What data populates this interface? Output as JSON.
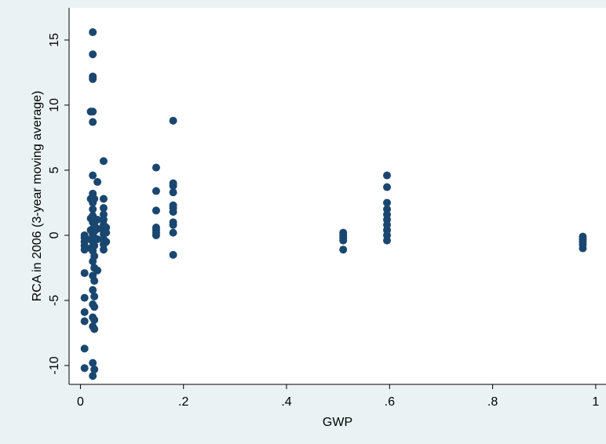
{
  "chart_data": {
    "type": "scatter",
    "x_label": "GWP",
    "y_label": "RCA in 2006 (3-year moving average)",
    "color": "#1a476f",
    "xlim": [
      -0.022,
      1.02
    ],
    "ylim": [
      -11.45,
      17.47
    ],
    "xticks": [
      0,
      {
        "value": 0.2,
        "label": ".2"
      },
      {
        "value": 0.4,
        "label": ".4"
      },
      {
        "value": 0.6,
        "label": ".6"
      },
      {
        "value": 0.8,
        "label": ".8"
      },
      1
    ],
    "yticks": [
      -10,
      -5,
      0,
      5,
      10,
      15
    ],
    "x": [
      0.008,
      0.008,
      0.008,
      0.008,
      0.008,
      0.008,
      0.008,
      0.008,
      0.008,
      0.008,
      0.008,
      0.02,
      0.02,
      0.02,
      0.02,
      0.02,
      0.02,
      0.024,
      0.024,
      0.024,
      0.024,
      0.024,
      0.024,
      0.024,
      0.024,
      0.024,
      0.024,
      0.024,
      0.024,
      0.024,
      0.024,
      0.024,
      0.024,
      0.024,
      0.024,
      0.024,
      0.024,
      0.024,
      0.024,
      0.024,
      0.024,
      0.027,
      0.027,
      0.027,
      0.027,
      0.027,
      0.027,
      0.027,
      0.027,
      0.027,
      0.027,
      0.027,
      0.027,
      0.027,
      0.027,
      0.033,
      0.033,
      0.033,
      0.033,
      0.033,
      0.045,
      0.045,
      0.045,
      0.045,
      0.045,
      0.045,
      0.045,
      0.045,
      0.045,
      0.045,
      0.045,
      0.05,
      0.05,
      0.05,
      0.147,
      0.147,
      0.147,
      0.147,
      0.147,
      0.147,
      0.147,
      0.18,
      0.18,
      0.18,
      0.18,
      0.18,
      0.18,
      0.18,
      0.18,
      0.18,
      0.18,
      0.18,
      0.51,
      0.51,
      0.51,
      0.51,
      0.51,
      0.595,
      0.595,
      0.595,
      0.595,
      0.595,
      0.595,
      0.595,
      0.595,
      0.595,
      0.595,
      0.975,
      0.975,
      0.975,
      0.975,
      0.975
    ],
    "y": [
      0,
      -0.2,
      -0.5,
      -0.8,
      -1.1,
      -2.9,
      -4.8,
      -5.9,
      -6.6,
      -8.7,
      -10.2,
      9.5,
      2.8,
      1.3,
      0.4,
      -0.3,
      -1.0,
      15.6,
      13.9,
      12.2,
      12.0,
      9.5,
      8.7,
      4.6,
      3.2,
      2.5,
      2.0,
      1.5,
      1.0,
      0.5,
      0.1,
      -0.5,
      -1.2,
      -2.0,
      -3.1,
      -4.2,
      -5.3,
      -6.3,
      -7.0,
      -9.8,
      -10.8,
      2.8,
      1.2,
      0.8,
      0.3,
      -0.2,
      -0.8,
      -1.6,
      -2.5,
      -3.5,
      -4.7,
      -5.5,
      -6.5,
      -7.2,
      -10.3,
      4.1,
      1.2,
      0.5,
      -0.3,
      -2.7,
      5.7,
      2.8,
      2.1,
      1.6,
      1.2,
      0.8,
      0.4,
      0.1,
      -0.3,
      -0.7,
      -1.1,
      0.6,
      0.2,
      -0.5,
      5.2,
      3.4,
      1.9,
      0.6,
      0.4,
      0.2,
      0.0,
      8.8,
      4.0,
      3.8,
      3.3,
      2.3,
      2.1,
      1.8,
      1.0,
      0.8,
      0.2,
      -1.5,
      0.2,
      0,
      -0.2,
      -0.4,
      -1.1,
      4.6,
      3.7,
      2.5,
      2.0,
      1.6,
      1.2,
      0.8,
      0.4,
      0,
      -0.4,
      -0.1,
      -0.3,
      -0.5,
      -0.7,
      -1.0
    ]
  }
}
